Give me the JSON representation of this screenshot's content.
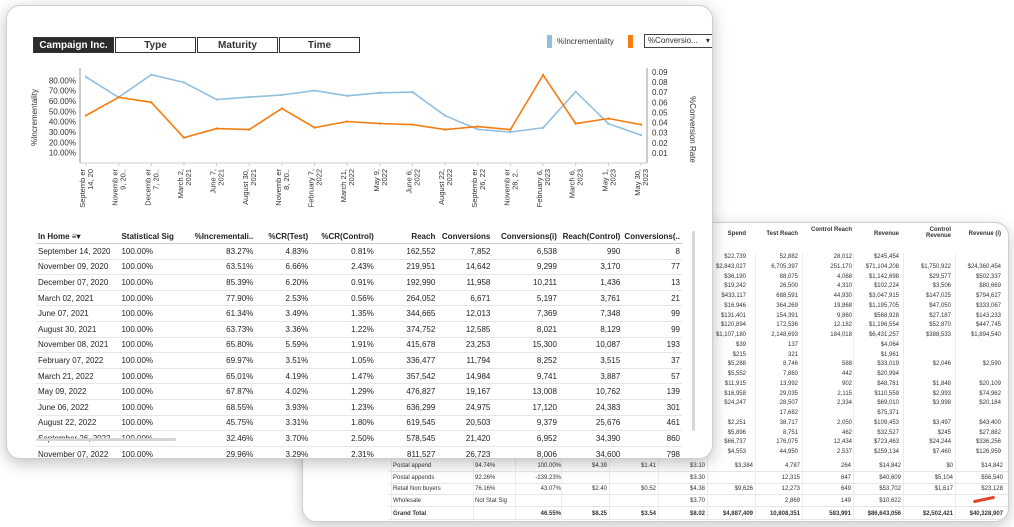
{
  "tabs": [
    {
      "label": "Campaign Inc.",
      "active": true
    },
    {
      "label": "Type",
      "active": false
    },
    {
      "label": "Maturity",
      "active": false
    },
    {
      "label": "Time",
      "active": false
    }
  ],
  "legend": {
    "series1": "%Incrementality",
    "series2_dropdown": "%Conversio...",
    "color1": "#91bfdf",
    "color2": "#f57d0f"
  },
  "chart_data": {
    "type": "line",
    "xlabels": [
      "Septemb er 14, 20",
      "Novemb er 9, 20..",
      "Decemb er 7, 20..",
      "March 2, 2021",
      "June 7, 2021",
      "August 30, 2021",
      "Novemb er 8, 20..",
      "February 7, 2022",
      "March 21, 2022",
      "May 9, 2022",
      "June 6, 2022",
      "August 22, 2022",
      "Septemb er 26, 22",
      "Novemb er 28, 2..",
      "February 6, 2023",
      "March 6, 2023",
      "May 1, 2023",
      "May 30, 2023"
    ],
    "ylabel_left": "%Incrementality",
    "ylabel_right": "%Conversion Rate",
    "left_ticks": [
      "80.00%",
      "70.00%",
      "60.00%",
      "50.00%",
      "40.00%",
      "30.00%",
      "20.00%",
      "10.00%"
    ],
    "right_ticks": [
      "0.09",
      "0.08",
      "0.07",
      "0.06",
      "0.05",
      "0.04",
      "0.03",
      "0.02",
      "0.01"
    ],
    "ylim_left": [
      0,
      0.88
    ],
    "ylim_right": [
      0,
      0.09
    ],
    "series": [
      {
        "name": "%Incrementality",
        "color": "#91bfdf",
        "axis": "left",
        "values": [
          0.8327,
          0.6351,
          0.8539,
          0.779,
          0.6134,
          0.6373,
          0.658,
          0.6997,
          0.6501,
          0.6787,
          0.6855,
          0.4575,
          0.3246,
          0.2996,
          0.34,
          0.69,
          0.38,
          0.27
        ]
      },
      {
        "name": "%Conversion Rate",
        "color": "#f57d0f",
        "axis": "right",
        "values": [
          0.047,
          0.065,
          0.06,
          0.025,
          0.034,
          0.033,
          0.054,
          0.035,
          0.041,
          0.039,
          0.038,
          0.033,
          0.036,
          0.033,
          0.087,
          0.039,
          0.044,
          0.038
        ]
      }
    ]
  },
  "table": {
    "headers": [
      "In Home",
      "Statistical Sig",
      "%Incrementali..",
      "%CR(Test)",
      "%CR(Control)",
      "Reach",
      "Conversions",
      "Conversions(i)",
      "Reach(Control)",
      "Conversions(.."
    ],
    "rows": [
      [
        "September 14, 2020",
        "100.00%",
        "83.27%",
        "4.83%",
        "0.81%",
        "162,552",
        "7,852",
        "6,538",
        "990",
        "8"
      ],
      [
        "November 09, 2020",
        "100.00%",
        "63.51%",
        "6.66%",
        "2.43%",
        "219,951",
        "14,642",
        "9,299",
        "3,170",
        "77"
      ],
      [
        "December 07, 2020",
        "100.00%",
        "85.39%",
        "6.20%",
        "0.91%",
        "192,990",
        "11,958",
        "10,211",
        "1,436",
        "13"
      ],
      [
        "March 02, 2021",
        "100.00%",
        "77.90%",
        "2.53%",
        "0.56%",
        "264,052",
        "6,671",
        "5,197",
        "3,761",
        "21"
      ],
      [
        "June 07, 2021",
        "100.00%",
        "61.34%",
        "3.49%",
        "1.35%",
        "344,665",
        "12,013",
        "7,369",
        "7,348",
        "99"
      ],
      [
        "August 30, 2021",
        "100.00%",
        "63.73%",
        "3.36%",
        "1.22%",
        "374,752",
        "12,585",
        "8,021",
        "8,129",
        "99"
      ],
      [
        "November 08, 2021",
        "100.00%",
        "65.80%",
        "5.59%",
        "1.91%",
        "415,678",
        "23,253",
        "15,300",
        "10,087",
        "193"
      ],
      [
        "February 07, 2022",
        "100.00%",
        "69.97%",
        "3.51%",
        "1.05%",
        "336,477",
        "11,794",
        "8,252",
        "3,515",
        "37"
      ],
      [
        "March 21, 2022",
        "100.00%",
        "65.01%",
        "4.19%",
        "1.47%",
        "357,542",
        "14,984",
        "9,741",
        "3,887",
        "57"
      ],
      [
        "May 09, 2022",
        "100.00%",
        "67.87%",
        "4.02%",
        "1.29%",
        "476,827",
        "19,167",
        "13,008",
        "10,762",
        "139"
      ],
      [
        "June 06, 2022",
        "100.00%",
        "68.55%",
        "3.93%",
        "1.23%",
        "636,299",
        "24,975",
        "17,120",
        "24,383",
        "301"
      ],
      [
        "August 22, 2022",
        "100.00%",
        "45.75%",
        "3.31%",
        "1.80%",
        "619,545",
        "20,503",
        "9,379",
        "25,676",
        "461"
      ],
      [
        "September 26, 2022",
        "100.00%",
        "32.46%",
        "3.70%",
        "2.50%",
        "578,545",
        "21,420",
        "6,952",
        "34,390",
        "860"
      ],
      [
        "November 07, 2022",
        "100.00%",
        "29.96%",
        "3.29%",
        "2.31%",
        "811,527",
        "26,723",
        "8,006",
        "34,600",
        "798"
      ]
    ]
  },
  "back": {
    "headers": [
      "Spend",
      "Test Reach",
      "Control Reach",
      "Revenue",
      "Control Revenue",
      "Revenue (i)"
    ],
    "rows": [
      [
        "$22,739",
        "52,882",
        "28,012",
        "$245,454",
        "",
        ""
      ],
      [
        "$2,843,027",
        "6,705,397",
        "251,170",
        "$71,104,208",
        "$1,750,922",
        "$24,360,454"
      ],
      [
        "$36,190",
        "88,075",
        "4,068",
        "$1,142,698",
        "$29,577",
        "$502,337"
      ],
      [
        "$19,242",
        "26,500",
        "4,310",
        "$102,224",
        "$3,506",
        "$80,669"
      ],
      [
        "$433,117",
        "688,591",
        "44,930",
        "$3,047,915",
        "$147,025",
        "$794,627"
      ],
      [
        "$16,946",
        "364,269",
        "19,868",
        "$1,195,705",
        "$47,050",
        "$333,067"
      ],
      [
        "$131,401",
        "154,391",
        "9,860",
        "$568,928",
        "$27,187",
        "$143,233"
      ],
      [
        "$120,894",
        "172,536",
        "12,182",
        "$1,196,554",
        "$52,870",
        "$447,745"
      ],
      [
        "$1,107,180",
        "2,148,693",
        "184,018",
        "$6,431,257",
        "$388,533",
        "$1,894,540"
      ],
      [
        "$39",
        "137",
        "",
        "$4,064",
        "",
        ""
      ],
      [
        "$215",
        "321",
        "",
        "$1,961",
        "",
        ""
      ],
      [
        "$5,288",
        "8,746",
        "588",
        "$33,019",
        "$2,046",
        "$2,590"
      ],
      [
        "$5,552",
        "7,860",
        "442",
        "$20,994",
        "",
        ""
      ],
      [
        "$11,915",
        "13,992",
        "902",
        "$48,781",
        "$1,848",
        "$20,109"
      ],
      [
        "$16,958",
        "29,035",
        "2,115",
        "$110,559",
        "$2,993",
        "$74,962"
      ],
      [
        "$24,247",
        "28,507",
        "2,334",
        "$69,010",
        "$3,998",
        "$20,184"
      ],
      [
        "",
        "17,682",
        "",
        "$75,371",
        "",
        ""
      ],
      [
        "$2,251",
        "38,717",
        "2,050",
        "$109,453",
        "$3,497",
        "$43,400"
      ],
      [
        "$5,896",
        "8,751",
        "462",
        "$32,527",
        "$245",
        "$27,882"
      ],
      [
        "$66,737",
        "176,075",
        "12,434",
        "$723,463",
        "$24,244",
        "$336,256"
      ],
      [
        "$4,553",
        "44,950",
        "2,537",
        "$259,134",
        "$7,460",
        "$126,959"
      ]
    ],
    "bottom_rows": [
      {
        "label": "Postal append",
        "sig": "94.74%",
        "incr": "100.00%",
        "a": "$4.39",
        "b": "$1.41",
        "c": "$3.10",
        "spend": "$3,384",
        "reach": "4,787",
        "creach": "264",
        "rev": "$14,842",
        "crev": "$0",
        "revi": "$14,842"
      },
      {
        "label": "Postal appends",
        "sig": "92.26%",
        "incr": "-139.23%",
        "a": "",
        "b": "",
        "c": "$3.30",
        "spend": "",
        "reach": "12,315",
        "creach": "647",
        "rev": "$40,609",
        "crev": "$5,104",
        "revi": "$56,540"
      },
      {
        "label": "Retail Non buyers",
        "sig": "76.16%",
        "incr": "43.07%",
        "a": "$2.40",
        "b": "$0.52",
        "c": "$4.38",
        "spend": "$9,626",
        "reach": "12,273",
        "creach": "649",
        "rev": "$53,702",
        "crev": "$1,617",
        "revi": "$23,128"
      },
      {
        "label": "Wholesale",
        "sig": "Not Stat Sig",
        "incr": "",
        "a": "",
        "b": "",
        "c": "$3.70",
        "spend": "",
        "reach": "2,869",
        "creach": "149",
        "rev": "$10,622",
        "crev": "",
        "revi": ""
      }
    ],
    "grand_total": {
      "label": "Grand Total",
      "incr": "46.55%",
      "a": "$8.25",
      "b": "$3.54",
      "c": "$8.02",
      "spend": "$4,887,409",
      "reach": "10,808,351",
      "creach": "583,991",
      "rev": "$86,643,056",
      "crev": "$2,502,421",
      "revi": "$40,328,907"
    }
  }
}
